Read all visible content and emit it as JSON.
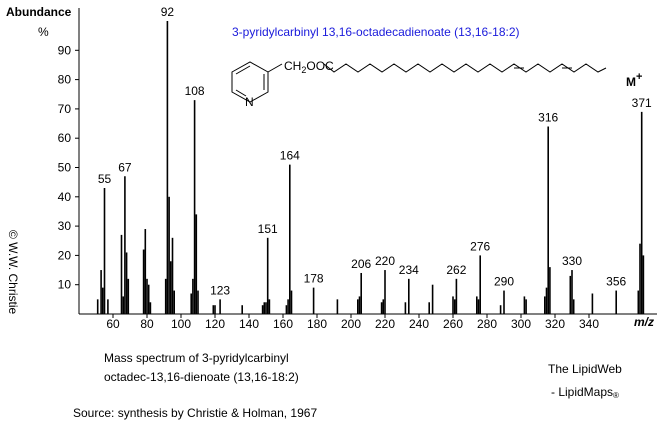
{
  "chart_data": {
    "type": "spectrum",
    "title": "3-pyridylcarbinyl 13,16-octadecadienoate (13,16-18:2)",
    "ylabel": "Abundance",
    "yunit": "%",
    "xlabel": "m/z",
    "molecular_ion": {
      "letter": "M",
      "sup": "+"
    },
    "structure": {
      "ch": "CH",
      "sub": "2",
      "ooc": "OOC",
      "n": "N"
    },
    "caption": [
      "Mass spectrum of 3-pyridylcarbinyl",
      "octadec-13,16-dienoate (13,16-18:2)"
    ],
    "site": [
      "The LipidWeb",
      "- LipidMaps",
      "®"
    ],
    "source": "Source: synthesis by Christie & Holman, 1967",
    "copyright": "© W.W. Christie",
    "color": "#000000",
    "xlim": [
      40,
      380
    ],
    "xticks": [
      60,
      80,
      100,
      120,
      140,
      160,
      180,
      200,
      220,
      240,
      260,
      280,
      300,
      320,
      340
    ],
    "ylim": [
      0,
      100
    ],
    "yticks": [
      10,
      20,
      30,
      40,
      50,
      60,
      70,
      80,
      90
    ],
    "peaks": {
      "x": [
        55,
        67,
        92,
        108,
        123,
        151,
        164,
        178,
        206,
        220,
        234,
        262,
        276,
        290,
        316,
        330,
        356,
        371
      ],
      "values": [
        43,
        47,
        100,
        73,
        5,
        26,
        51,
        9,
        14,
        15,
        12,
        12,
        20,
        8,
        64,
        15,
        8,
        69
      ]
    },
    "minor_peaks": {
      "x": [
        51,
        53,
        54,
        57,
        65,
        66,
        68,
        69,
        78,
        79,
        80,
        81,
        82,
        91,
        93,
        94,
        95,
        96,
        106,
        107,
        109,
        110,
        119,
        120,
        136,
        148,
        149,
        150,
        152,
        162,
        163,
        165,
        192,
        204,
        205,
        218,
        219,
        232,
        246,
        248,
        260,
        261,
        274,
        275,
        288,
        302,
        303,
        314,
        315,
        317,
        329,
        331,
        342,
        369,
        370,
        372
      ],
      "values": [
        5,
        15,
        9,
        5,
        27,
        6,
        21,
        12,
        22,
        29,
        12,
        10,
        4,
        12,
        40,
        18,
        26,
        8,
        7,
        12,
        34,
        8,
        3,
        3,
        3,
        3,
        4,
        4,
        5,
        3,
        5,
        8,
        5,
        5,
        6,
        4,
        5,
        4,
        4,
        10,
        6,
        5,
        6,
        5,
        3,
        6,
        5,
        6,
        9,
        16,
        13,
        5,
        7,
        8,
        24,
        20
      ]
    }
  }
}
